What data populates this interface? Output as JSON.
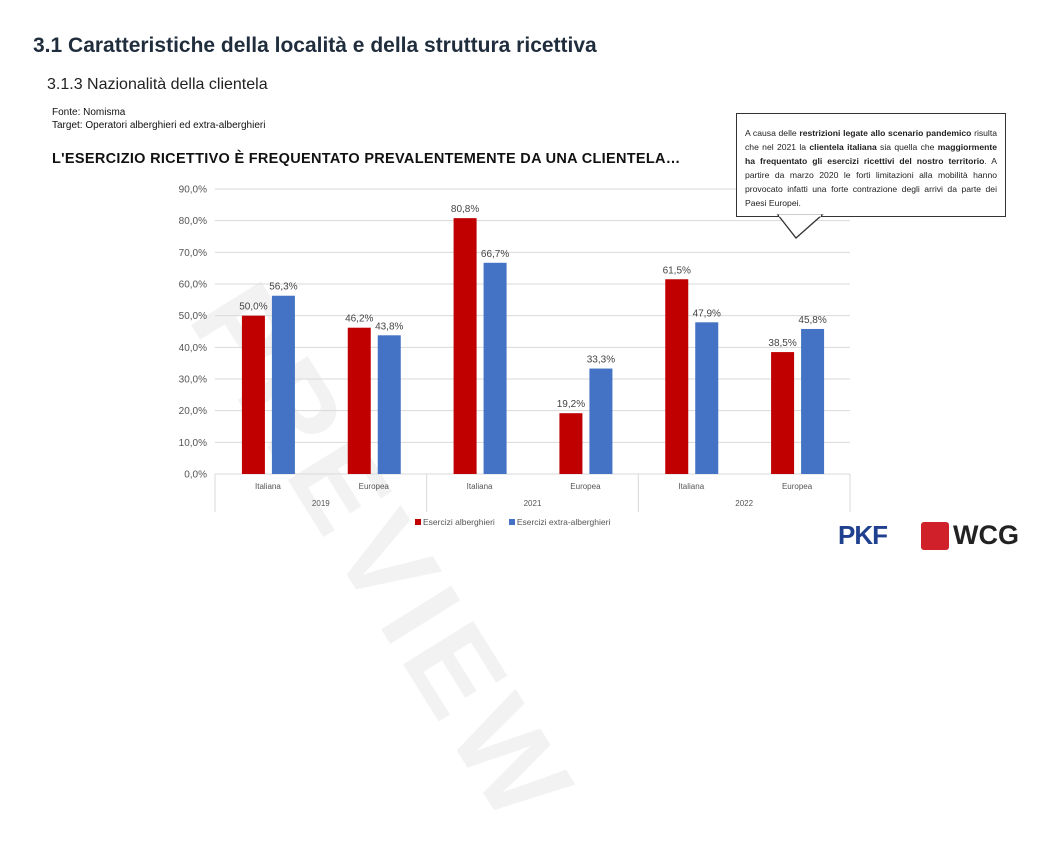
{
  "header": {
    "title": "3.1 Caratteristiche della località e della struttura ricettiva",
    "subtitle": "3.1.3 Nazionalità della clientela",
    "fonte": "Fonte: Nomisma",
    "target": "Target: Operatori alberghieri ed extra-alberghieri",
    "heading": "L'ESERCIZIO RICETTIVO È FREQUENTATO PREVALENTEMENTE DA UNA CLIENTELA…"
  },
  "callout": {
    "p1": "A causa delle ",
    "b1": "restrizioni legate allo scenario pandemico",
    "p2": " risulta che nel 2021 la ",
    "b2": "clientela italiana",
    "p3": " sia quella che ",
    "b3": "maggiormente ha frequentato gli esercizi ricettivi del nostro territorio",
    "p4": ". A partire da marzo 2020 le forti limitazioni alla mobilità hanno provocato infatti una forte contrazione degli arrivi da parte dei Paesi Europei."
  },
  "watermark": "PREVIEW",
  "logos": {
    "pkf": "PKF",
    "wcg": "WCG"
  },
  "chart_data": {
    "type": "bar",
    "title": "L'ESERCIZIO RICETTIVO È FREQUENTATO PREVALENTEMENTE DA UNA CLIENTELA…",
    "categories": [
      "Italiana",
      "Europea",
      "Italiana",
      "Europea",
      "Italiana",
      "Europea"
    ],
    "groups": [
      "2019",
      "2021",
      "2022"
    ],
    "series": [
      {
        "name": "Esercizi alberghieri",
        "color": "#c00000",
        "values": [
          50.0,
          46.2,
          80.8,
          19.2,
          61.5,
          38.5
        ],
        "labels": [
          "50,0%",
          "46,2%",
          "80,8%",
          "19,2%",
          "61,5%",
          "38,5%"
        ]
      },
      {
        "name": "Esercizi extra-alberghieri",
        "color": "#4472c4",
        "values": [
          56.3,
          43.8,
          66.7,
          33.3,
          47.9,
          45.8
        ],
        "labels": [
          "56,3%",
          "43,8%",
          "66,7%",
          "33,3%",
          "47,9%",
          "45,8%"
        ]
      }
    ],
    "yticks": [
      "0,0%",
      "10,0%",
      "20,0%",
      "30,0%",
      "40,0%",
      "50,0%",
      "60,0%",
      "70,0%",
      "80,0%",
      "90,0%"
    ],
    "ylim": [
      0,
      90
    ],
    "grid": true,
    "legend": "bottom"
  }
}
